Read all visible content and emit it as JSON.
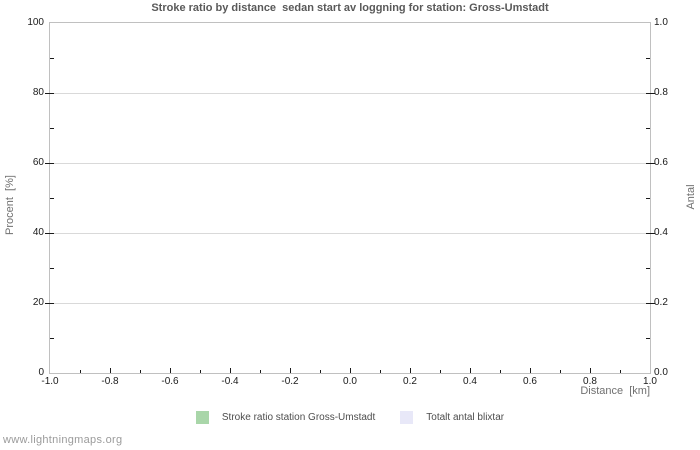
{
  "footer": {
    "link_text": "www.lightningmaps.org"
  },
  "colors": {
    "background": "#ffffff",
    "plot_border": "#c0c0c0",
    "gridline": "#d9d9d9",
    "tick": "#1a1a1a",
    "title_text": "#595959",
    "axis_title_text": "#707070",
    "legend_text": "#4d4d4d",
    "footer_text": "#9b9b9b"
  },
  "chart_data": {
    "type": "bar",
    "title": "Stroke ratio by distance  sedan start av loggning for station: Gross-Umstadt",
    "grid": true,
    "gridlines": "horizontal-major-only",
    "legend_position": "bottom",
    "plot_is_empty": true,
    "x_axis": {
      "label": "Distance  [km]",
      "range": [
        -1.0,
        1.0
      ],
      "major_ticks": [
        -1.0,
        -0.8,
        -0.6,
        -0.4,
        -0.2,
        0.0,
        0.2,
        0.4,
        0.6,
        0.8,
        1.0
      ],
      "major_tick_labels": [
        "-1.0",
        "-0.8",
        "-0.6",
        "-0.4",
        "-0.2",
        "0.0",
        "0.2",
        "0.4",
        "0.6",
        "0.8",
        "1.0"
      ],
      "minor_ticks": [
        -0.9,
        -0.7,
        -0.5,
        -0.3,
        -0.1,
        0.1,
        0.3,
        0.5,
        0.7,
        0.9
      ]
    },
    "y_axis_left": {
      "label": "Procent  [%]",
      "range": [
        0,
        100
      ],
      "major_ticks": [
        0,
        20,
        40,
        60,
        80,
        100
      ],
      "major_tick_labels": [
        "0",
        "20",
        "40",
        "60",
        "80",
        "100"
      ],
      "minor_ticks": [
        10,
        30,
        50,
        70,
        90
      ]
    },
    "y_axis_right": {
      "label": "Antal",
      "range": [
        0,
        1
      ],
      "major_ticks": [
        0,
        0.2,
        0.4,
        0.6,
        0.8,
        1.0
      ],
      "major_tick_labels": [
        "0.0",
        "0.2",
        "0.4",
        "0.6",
        "0.8",
        "1.0"
      ],
      "minor_ticks": [
        0.1,
        0.3,
        0.5,
        0.7,
        0.9
      ]
    },
    "series": [
      {
        "name": "Stroke ratio station Gross-Umstadt",
        "color": "#a9d6a9",
        "axis": "left",
        "values": []
      },
      {
        "name": "Totalt antal blixtar",
        "color": "#e8e8f8",
        "axis": "right",
        "values": []
      }
    ]
  }
}
